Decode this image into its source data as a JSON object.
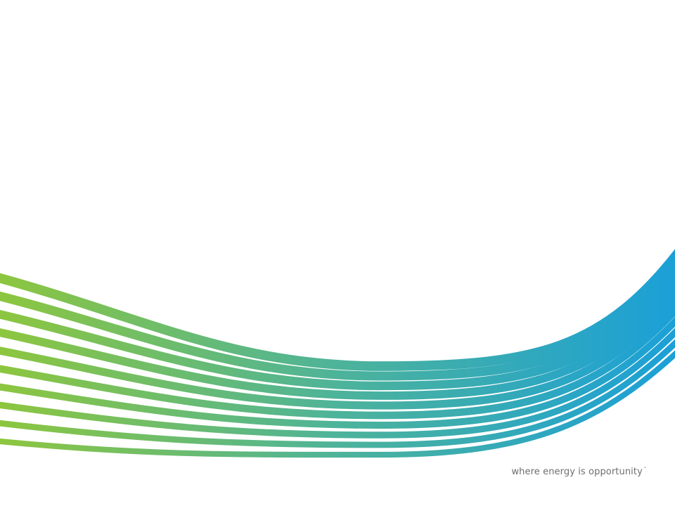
{
  "footer": {
    "tagline": "where energy is opportunity",
    "trademark": "™"
  },
  "colors": {
    "background": "#ffffff",
    "wave_start": "#8dc63f",
    "wave_end": "#1ba0d7",
    "tagline_text": "#6d6e71"
  },
  "decoration": {
    "name": "wave-stripes",
    "stripe_count": 10
  }
}
